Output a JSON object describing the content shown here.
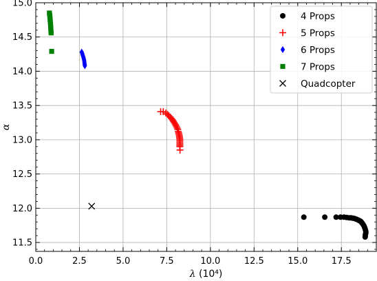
{
  "chart_data": {
    "type": "scatter",
    "xlabel_symbol": "λ",
    "xlabel_unit": "(10⁴)",
    "ylabel": "α",
    "xlim": [
      0.0,
      19.5
    ],
    "ylim": [
      11.37,
      15.0
    ],
    "x_ticks": [
      0.0,
      2.5,
      5.0,
      7.5,
      10.0,
      12.5,
      15.0,
      17.5
    ],
    "x_tick_labels": [
      "0.0",
      "2.5",
      "5.0",
      "7.5",
      "10.0",
      "12.5",
      "15.0",
      "17.5"
    ],
    "y_ticks": [
      11.5,
      12.0,
      12.5,
      13.0,
      13.5,
      14.0,
      14.5,
      15.0
    ],
    "y_tick_labels": [
      "11.5",
      "12.0",
      "12.5",
      "13.0",
      "13.5",
      "14.0",
      "14.5",
      "15.0"
    ],
    "grid": true,
    "legend_position": "top-right",
    "series": [
      {
        "name": "4 Props",
        "marker": "circle",
        "color": "#000000",
        "points": [
          [
            15.35,
            11.87
          ],
          [
            16.55,
            11.87
          ],
          [
            17.2,
            11.87
          ],
          [
            17.45,
            11.87
          ],
          [
            17.65,
            11.87
          ],
          [
            17.8,
            11.865
          ],
          [
            17.95,
            11.86
          ],
          [
            18.05,
            11.86
          ],
          [
            18.15,
            11.855
          ],
          [
            18.25,
            11.85
          ],
          [
            18.35,
            11.84
          ],
          [
            18.45,
            11.83
          ],
          [
            18.52,
            11.82
          ],
          [
            18.6,
            11.81
          ],
          [
            18.65,
            11.795
          ],
          [
            18.7,
            11.78
          ],
          [
            18.75,
            11.76
          ],
          [
            18.8,
            11.74
          ],
          [
            18.83,
            11.72
          ],
          [
            18.86,
            11.7
          ],
          [
            18.88,
            11.68
          ],
          [
            18.9,
            11.66
          ],
          [
            18.9,
            11.64
          ],
          [
            18.88,
            11.62
          ],
          [
            18.87,
            11.6
          ],
          [
            18.86,
            11.58
          ]
        ]
      },
      {
        "name": "5 Props",
        "marker": "plus",
        "color": "#ff0000",
        "points": [
          [
            7.15,
            13.41
          ],
          [
            7.3,
            13.41
          ],
          [
            7.45,
            13.39
          ],
          [
            7.55,
            13.37
          ],
          [
            7.62,
            13.35
          ],
          [
            7.7,
            13.33
          ],
          [
            7.77,
            13.31
          ],
          [
            7.83,
            13.29
          ],
          [
            7.88,
            13.27
          ],
          [
            7.93,
            13.25
          ],
          [
            7.98,
            13.23
          ],
          [
            8.02,
            13.21
          ],
          [
            8.06,
            13.19
          ],
          [
            8.1,
            13.17
          ],
          [
            8.13,
            13.15
          ],
          [
            8.16,
            13.12
          ],
          [
            8.18,
            13.1
          ],
          [
            8.2,
            13.08
          ],
          [
            8.22,
            13.06
          ],
          [
            8.23,
            13.04
          ],
          [
            8.24,
            13.02
          ],
          [
            8.25,
            13.0
          ],
          [
            8.25,
            12.98
          ],
          [
            8.25,
            12.96
          ],
          [
            8.25,
            12.94
          ],
          [
            8.25,
            12.92
          ],
          [
            8.25,
            12.9
          ],
          [
            8.26,
            12.85
          ]
        ]
      },
      {
        "name": "6 Props",
        "marker": "diamond",
        "color": "#0000ff",
        "points": [
          [
            2.63,
            14.28
          ],
          [
            2.66,
            14.26
          ],
          [
            2.68,
            14.24
          ],
          [
            2.71,
            14.22
          ],
          [
            2.73,
            14.2
          ],
          [
            2.75,
            14.18
          ],
          [
            2.77,
            14.16
          ],
          [
            2.78,
            14.14
          ],
          [
            2.79,
            14.12
          ],
          [
            2.8,
            14.1
          ],
          [
            2.81,
            14.08
          ]
        ]
      },
      {
        "name": "7 Props",
        "marker": "square",
        "color": "#008000",
        "points": [
          [
            0.78,
            14.85
          ],
          [
            0.8,
            14.82
          ],
          [
            0.81,
            14.79
          ],
          [
            0.82,
            14.76
          ],
          [
            0.83,
            14.73
          ],
          [
            0.84,
            14.7
          ],
          [
            0.85,
            14.67
          ],
          [
            0.86,
            14.64
          ],
          [
            0.86,
            14.61
          ],
          [
            0.87,
            14.58
          ],
          [
            0.88,
            14.56
          ],
          [
            0.91,
            14.29
          ]
        ]
      },
      {
        "name": "Quadcopter",
        "marker": "x",
        "color": "#000000",
        "points": [
          [
            3.2,
            12.03
          ]
        ]
      }
    ]
  }
}
